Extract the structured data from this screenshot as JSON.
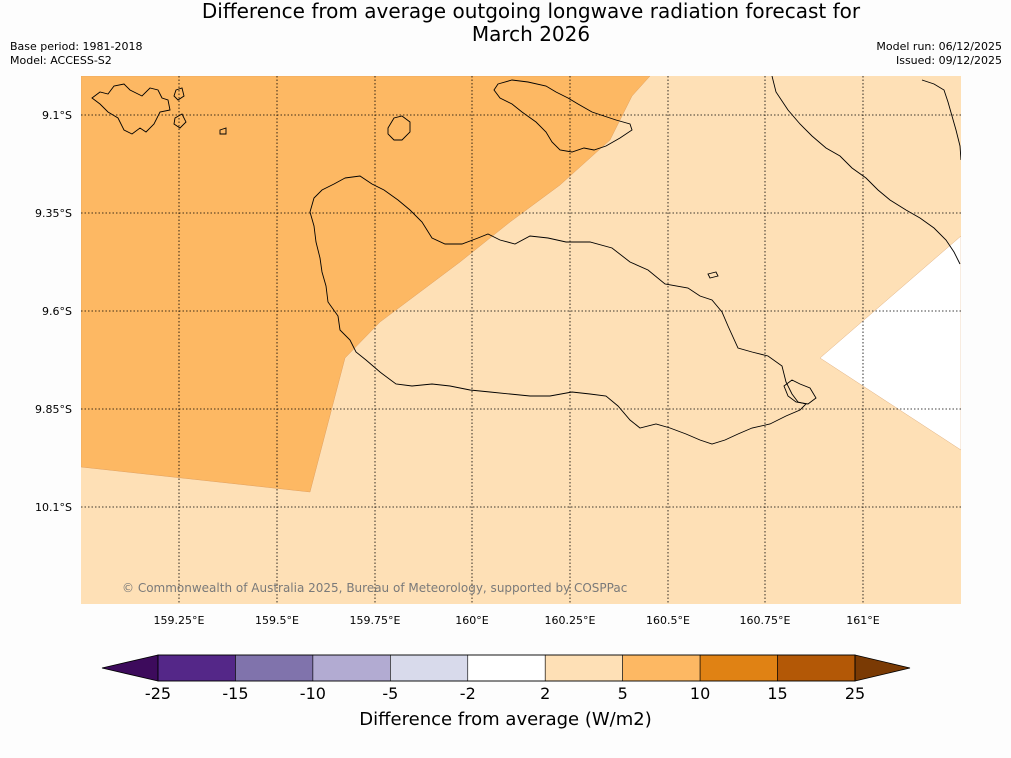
{
  "header": {
    "title_line1": "Difference from average outgoing longwave radiation forecast for",
    "title_line2": "March 2026",
    "base_period": "Base period: 1981-2018",
    "model": "Model: ACCESS-S2",
    "model_run": "Model run: 06/12/2025",
    "issued": "Issued: 09/12/2025"
  },
  "map": {
    "lat_labels": [
      "9.1°S",
      "9.35°S",
      "9.6°S",
      "9.85°S",
      "10.1°S"
    ],
    "lon_labels": [
      "159.25°E",
      "159.5°E",
      "159.75°E",
      "160°E",
      "160.25°E",
      "160.5°E",
      "160.75°E",
      "161°E"
    ],
    "copyright": "© Commonwealth of Australia 2025, Bureau of Meteorology, supported by COSPPac",
    "regions": [
      {
        "category": "5 to 10",
        "color": "#fdb863"
      },
      {
        "category": "2 to 5",
        "color": "#fee0b6"
      },
      {
        "category": "-2 to 2",
        "color": "#ffffff"
      }
    ]
  },
  "colorbar": {
    "title": "Difference from average (W/m2)",
    "ticks": [
      "-25",
      "-15",
      "-10",
      "-5",
      "-2",
      "2",
      "5",
      "10",
      "15",
      "25"
    ],
    "colors": [
      "#3d0b5c",
      "#542788",
      "#8073ac",
      "#b2abd2",
      "#d8daeb",
      "#ffffff",
      "#fee0b6",
      "#fdb863",
      "#e08214",
      "#b35806",
      "#7a3a04"
    ]
  }
}
